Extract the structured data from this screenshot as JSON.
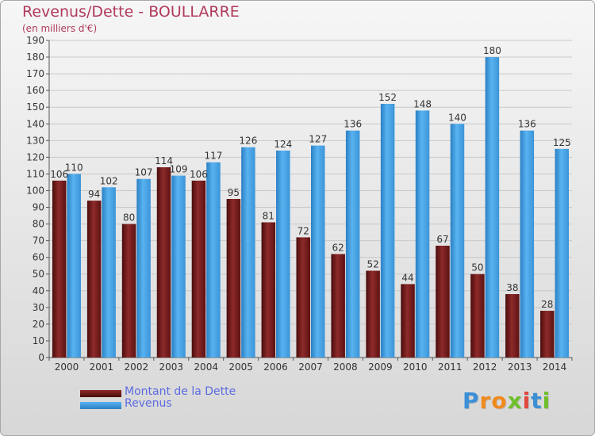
{
  "header": {
    "title": "Revenus/Dette - BOULLARRE",
    "subtitle": "(en milliers d'€)"
  },
  "chart_data": {
    "type": "bar",
    "title": "Revenus/Dette - BOULLARRE",
    "subtitle": "(en milliers d'€)",
    "xlabel": "",
    "ylabel": "",
    "ylim": [
      0,
      190
    ],
    "ytick_step": 10,
    "grid": true,
    "legend_position": "bottom-left",
    "categories": [
      "2000",
      "2001",
      "2002",
      "2003",
      "2004",
      "2005",
      "2006",
      "2007",
      "2008",
      "2009",
      "2010",
      "2011",
      "2012",
      "2013",
      "2014"
    ],
    "series": [
      {
        "name": "Montant de la Dette",
        "color": "#7a1f1f",
        "values": [
          106,
          94,
          80,
          114,
          106,
          95,
          81,
          72,
          62,
          52,
          44,
          67,
          50,
          38,
          28
        ]
      },
      {
        "name": "Revenus",
        "color": "#3f9ee0",
        "values": [
          110,
          102,
          107,
          109,
          117,
          126,
          124,
          127,
          136,
          152,
          148,
          140,
          180,
          136,
          125
        ]
      }
    ]
  },
  "legend": {
    "items": [
      {
        "label": "Montant de la Dette",
        "color": "#6b1414"
      },
      {
        "label": "Revenus",
        "color": "#3f9ee0"
      }
    ]
  },
  "logo": {
    "letters": [
      "P",
      "r",
      "o",
      "x",
      "i",
      "t",
      "i"
    ],
    "colors": [
      "#3a8fd6",
      "#f08a1c",
      "#f08a1c",
      "#6fbf2a",
      "#e0473e",
      "#3a8fd6",
      "#6fbf2a"
    ]
  }
}
